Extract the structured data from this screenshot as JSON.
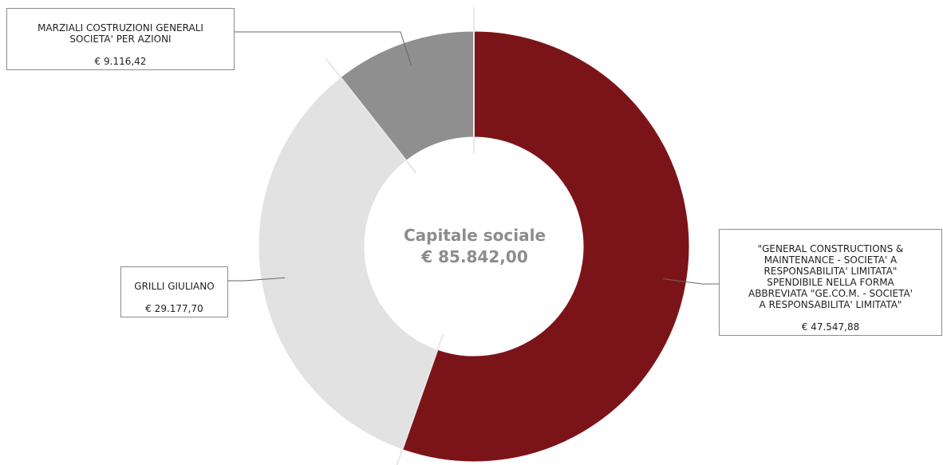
{
  "chart_data": {
    "type": "pie",
    "style": "donut",
    "center_title": "Capitale sociale",
    "center_value": "€ 85.842,00",
    "colors": [
      "#7b1419",
      "#e2e2e2",
      "#8f8f8f"
    ],
    "slices": [
      {
        "label": "\"GENERAL CONSTRUCTIONS &\nMAINTENANCE - SOCIETA' A\nRESPONSABILITA' LIMITATA\"\nSPENDIBILE NELLA FORMA\nABBREVIATA \"GE.CO.M. - SOCIETA'\nA RESPONSABILITA' LIMITATA\"",
        "value": 47547.88,
        "value_label": "€ 47.547,88"
      },
      {
        "label": "GRILLI GIULIANO",
        "value": 29177.7,
        "value_label": "€ 29.177,70"
      },
      {
        "label": "MARZIALI COSTRUZIONI GENERALI\nSOCIETA' PER AZIONI",
        "value": 9116.42,
        "value_label": "€ 9.116,42"
      }
    ]
  }
}
